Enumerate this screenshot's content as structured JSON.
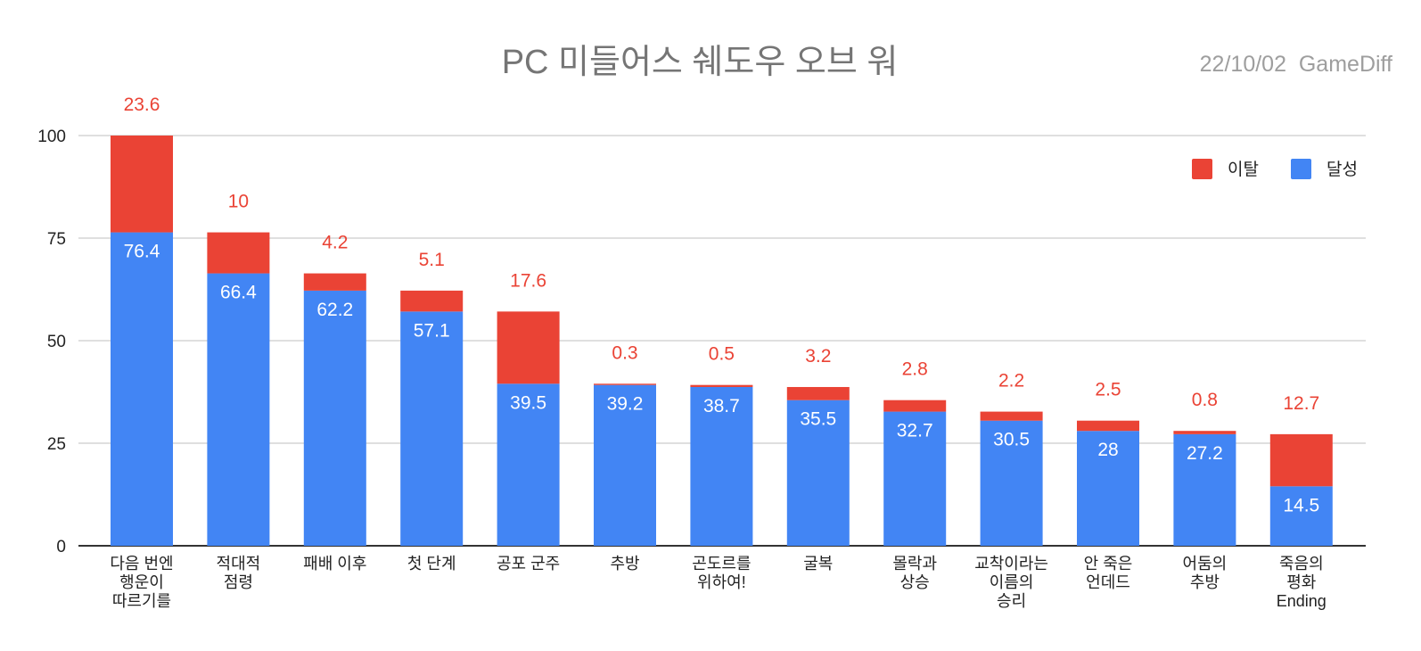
{
  "chart_data": {
    "type": "bar",
    "stacked": true,
    "title": "PC 미들어스 쉐도우 오브 워",
    "credit": "22/10/02  GameDiff",
    "xlabel": "",
    "ylabel": "",
    "ylim": [
      0,
      100
    ],
    "yticks": [
      0,
      25,
      50,
      75,
      100
    ],
    "grid": true,
    "legend_position": "top-right",
    "categories": [
      [
        "다음 번엔",
        "행운이",
        "따르기를"
      ],
      [
        "적대적",
        "점령"
      ],
      [
        "패배 이후"
      ],
      [
        "첫 단계"
      ],
      [
        "공포 군주"
      ],
      [
        "추방"
      ],
      [
        "곤도르를",
        "위하여!"
      ],
      [
        "굴복"
      ],
      [
        "몰락과",
        "상승"
      ],
      [
        "교착이라는",
        "이름의",
        "승리"
      ],
      [
        "안 죽은",
        "언데드"
      ],
      [
        "어둠의",
        "추방"
      ],
      [
        "죽음의",
        "평화",
        "Ending"
      ]
    ],
    "series": [
      {
        "name": "달성",
        "color": "#4285f4",
        "values": [
          76.4,
          66.4,
          62.2,
          57.1,
          39.5,
          39.2,
          38.7,
          35.5,
          32.7,
          30.5,
          28,
          27.2,
          14.5
        ]
      },
      {
        "name": "이탈",
        "color": "#ea4335",
        "values": [
          23.6,
          10,
          4.2,
          5.1,
          17.6,
          0.3,
          0.5,
          3.2,
          2.8,
          2.2,
          2.5,
          0.8,
          12.7
        ]
      }
    ],
    "legend_order": [
      "이탈",
      "달성"
    ]
  }
}
